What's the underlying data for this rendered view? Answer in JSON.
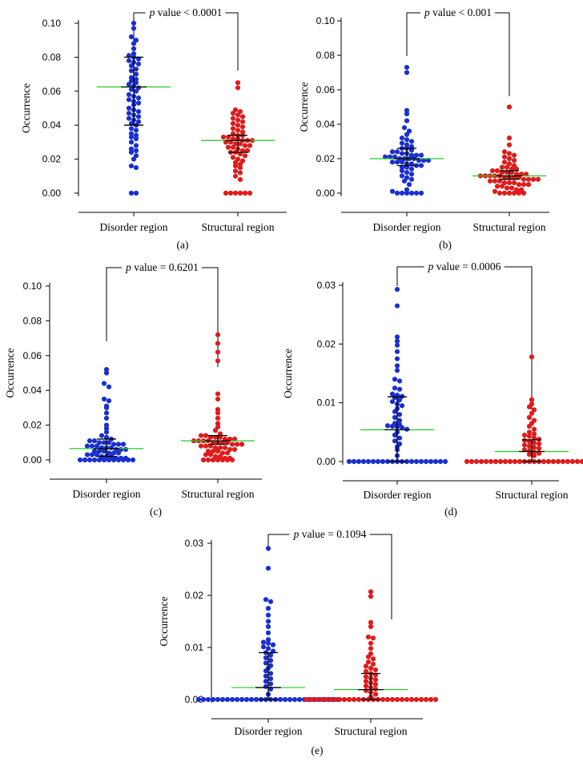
{
  "chart_data": [
    {
      "type": "scatter",
      "panel_label": "(a)",
      "ylabel": "Occurrence",
      "categories": [
        "Disorder region",
        "Structural region"
      ],
      "ylim": [
        0,
        0.1
      ],
      "yticks": [
        "0.00",
        "0.02",
        "0.04",
        "0.06",
        "0.08",
        "0.10"
      ],
      "p_label": "p",
      "p_text": " value < 0.0001",
      "series": [
        {
          "name": "Disorder region",
          "color": "#1a2fd0",
          "median": 0.0625,
          "q1": 0.04,
          "q3": 0.08,
          "values": [
            0.1,
            0.097,
            0.092,
            0.09,
            0.088,
            0.085,
            0.082,
            0.081,
            0.08,
            0.079,
            0.078,
            0.077,
            0.076,
            0.075,
            0.073,
            0.072,
            0.07,
            0.068,
            0.067,
            0.066,
            0.065,
            0.064,
            0.063,
            0.062,
            0.061,
            0.06,
            0.058,
            0.057,
            0.056,
            0.055,
            0.054,
            0.053,
            0.052,
            0.05,
            0.049,
            0.048,
            0.047,
            0.046,
            0.045,
            0.044,
            0.043,
            0.042,
            0.041,
            0.04,
            0.038,
            0.037,
            0.035,
            0.034,
            0.033,
            0.032,
            0.03,
            0.028,
            0.026,
            0.025,
            0.024,
            0.022,
            0.02,
            0.016,
            0.015,
            0.0,
            0.0
          ]
        },
        {
          "name": "Structural region",
          "color": "#e01b1b",
          "median": 0.031,
          "q1": 0.024,
          "q3": 0.034,
          "values": [
            0.065,
            0.062,
            0.049,
            0.048,
            0.047,
            0.046,
            0.045,
            0.044,
            0.043,
            0.042,
            0.041,
            0.04,
            0.039,
            0.038,
            0.037,
            0.036,
            0.035,
            0.034,
            0.034,
            0.033,
            0.033,
            0.032,
            0.032,
            0.031,
            0.031,
            0.031,
            0.03,
            0.03,
            0.029,
            0.029,
            0.028,
            0.028,
            0.027,
            0.027,
            0.026,
            0.025,
            0.025,
            0.024,
            0.024,
            0.023,
            0.022,
            0.021,
            0.02,
            0.019,
            0.018,
            0.017,
            0.016,
            0.015,
            0.013,
            0.012,
            0.01,
            0.008,
            0.0,
            0.0,
            0.0,
            0.0,
            0.0,
            0.0
          ]
        }
      ]
    },
    {
      "type": "scatter",
      "panel_label": "(b)",
      "ylabel": "Occurrence",
      "categories": [
        "Disorder region",
        "Structural region"
      ],
      "ylim": [
        0,
        0.1
      ],
      "yticks": [
        "0.00",
        "0.02",
        "0.04",
        "0.06",
        "0.08",
        "0.10"
      ],
      "p_label": "p",
      "p_text": " value < 0.001",
      "series": [
        {
          "name": "Disorder region",
          "color": "#1a2fd0",
          "median": 0.02,
          "q1": 0.016,
          "q3": 0.026,
          "values": [
            0.073,
            0.07,
            0.048,
            0.046,
            0.042,
            0.038,
            0.036,
            0.034,
            0.032,
            0.031,
            0.03,
            0.029,
            0.028,
            0.027,
            0.026,
            0.026,
            0.025,
            0.024,
            0.024,
            0.023,
            0.023,
            0.022,
            0.022,
            0.022,
            0.021,
            0.021,
            0.021,
            0.02,
            0.02,
            0.02,
            0.02,
            0.019,
            0.019,
            0.019,
            0.018,
            0.018,
            0.018,
            0.017,
            0.017,
            0.016,
            0.016,
            0.015,
            0.015,
            0.014,
            0.013,
            0.012,
            0.011,
            0.01,
            0.009,
            0.008,
            0.007,
            0.005,
            0.002,
            0.001,
            0.0,
            0.0,
            0.0,
            0.0,
            0.0,
            0.0
          ]
        },
        {
          "name": "Structural region",
          "color": "#e01b1b",
          "median": 0.01,
          "q1": 0.008,
          "q3": 0.013,
          "values": [
            0.05,
            0.032,
            0.028,
            0.024,
            0.023,
            0.022,
            0.021,
            0.02,
            0.019,
            0.018,
            0.017,
            0.016,
            0.015,
            0.015,
            0.014,
            0.014,
            0.013,
            0.013,
            0.012,
            0.012,
            0.012,
            0.011,
            0.011,
            0.011,
            0.01,
            0.01,
            0.01,
            0.01,
            0.01,
            0.009,
            0.009,
            0.009,
            0.009,
            0.008,
            0.008,
            0.008,
            0.008,
            0.007,
            0.007,
            0.007,
            0.006,
            0.006,
            0.006,
            0.005,
            0.005,
            0.005,
            0.004,
            0.004,
            0.003,
            0.003,
            0.002,
            0.002,
            0.001,
            0.0,
            0.0,
            0.0,
            0.0,
            0.0,
            0.0
          ]
        }
      ]
    },
    {
      "type": "scatter",
      "panel_label": "(c)",
      "ylabel": "Occurrence",
      "categories": [
        "Disorder region",
        "Structural region"
      ],
      "ylim": [
        0,
        0.1
      ],
      "yticks": [
        "0.00",
        "0.02",
        "0.04",
        "0.06",
        "0.08",
        "0.10"
      ],
      "p_label": "p",
      "p_text": " value = 0.6201",
      "series": [
        {
          "name": "Disorder region",
          "color": "#1a2fd0",
          "median": 0.0065,
          "q1": 0.002,
          "q3": 0.012,
          "values": [
            0.052,
            0.05,
            0.044,
            0.042,
            0.035,
            0.034,
            0.031,
            0.03,
            0.027,
            0.024,
            0.02,
            0.018,
            0.016,
            0.014,
            0.013,
            0.012,
            0.011,
            0.011,
            0.01,
            0.01,
            0.01,
            0.009,
            0.009,
            0.009,
            0.008,
            0.008,
            0.008,
            0.007,
            0.007,
            0.007,
            0.006,
            0.006,
            0.006,
            0.005,
            0.005,
            0.005,
            0.004,
            0.004,
            0.004,
            0.003,
            0.003,
            0.003,
            0.002,
            0.002,
            0.002,
            0.001,
            0.001,
            0.001,
            0.0,
            0.0,
            0.0,
            0.0,
            0.0,
            0.0,
            0.0,
            0.0,
            0.0,
            0.0,
            0.0,
            0.0
          ]
        },
        {
          "name": "Structural region",
          "color": "#e01b1b",
          "median": 0.011,
          "q1": 0.009,
          "q3": 0.014,
          "values": [
            0.072,
            0.067,
            0.062,
            0.057,
            0.038,
            0.035,
            0.029,
            0.027,
            0.024,
            0.021,
            0.019,
            0.017,
            0.015,
            0.014,
            0.014,
            0.013,
            0.013,
            0.013,
            0.012,
            0.012,
            0.012,
            0.011,
            0.011,
            0.011,
            0.011,
            0.01,
            0.01,
            0.01,
            0.01,
            0.009,
            0.009,
            0.009,
            0.008,
            0.008,
            0.008,
            0.007,
            0.007,
            0.007,
            0.006,
            0.006,
            0.005,
            0.005,
            0.005,
            0.004,
            0.004,
            0.003,
            0.003,
            0.002,
            0.002,
            0.001,
            0.001,
            0.0,
            0.0,
            0.0,
            0.0,
            0.0,
            0.0,
            0.0
          ]
        }
      ]
    },
    {
      "type": "scatter",
      "panel_label": "(d)",
      "ylabel": "Occurrence",
      "categories": [
        "Disorder region",
        "Structural region"
      ],
      "ylim": [
        0,
        0.03
      ],
      "yticks": [
        "0.00",
        "0.01",
        "0.02",
        "0.03"
      ],
      "p_label": "p",
      "p_text": " value = 0.0006",
      "series": [
        {
          "name": "Disorder region",
          "color": "#1a2fd0",
          "median": 0.0054,
          "q1": 0.0,
          "q3": 0.011,
          "values": [
            0.0293,
            0.0265,
            0.0212,
            0.0205,
            0.0198,
            0.0187,
            0.0175,
            0.0163,
            0.0155,
            0.014,
            0.0137,
            0.0125,
            0.0123,
            0.0115,
            0.0113,
            0.0111,
            0.0109,
            0.0105,
            0.0102,
            0.0098,
            0.0095,
            0.009,
            0.0085,
            0.008,
            0.0075,
            0.007,
            0.0065,
            0.0063,
            0.0061,
            0.006,
            0.0059,
            0.0058,
            0.0055,
            0.005,
            0.0045,
            0.004,
            0.0035,
            0.003,
            0.0025,
            0.002,
            0.001,
            0.0,
            0.0,
            0.0,
            0.0,
            0.0,
            0.0,
            0.0,
            0.0,
            0.0,
            0.0,
            0.0,
            0.0,
            0.0,
            0.0,
            0.0,
            0.0,
            0.0,
            0.0,
            0.0,
            0.0,
            0.0
          ]
        },
        {
          "name": "Structural region",
          "color": "#e01b1b",
          "median": 0.0017,
          "q1": 0.0,
          "q3": 0.0037,
          "values": [
            0.0178,
            0.0105,
            0.0098,
            0.0093,
            0.0088,
            0.0082,
            0.0075,
            0.007,
            0.0065,
            0.006,
            0.0055,
            0.005,
            0.0047,
            0.0045,
            0.0043,
            0.004,
            0.0038,
            0.0036,
            0.0034,
            0.0032,
            0.003,
            0.0028,
            0.0026,
            0.0024,
            0.0022,
            0.002,
            0.0018,
            0.0016,
            0.0014,
            0.0012,
            0.001,
            0.0,
            0.0,
            0.0,
            0.0,
            0.0,
            0.0,
            0.0,
            0.0,
            0.0,
            0.0,
            0.0,
            0.0,
            0.0,
            0.0,
            0.0,
            0.0,
            0.0,
            0.0,
            0.0,
            0.0,
            0.0,
            0.0,
            0.0,
            0.0,
            0.0,
            0.0,
            0.0,
            0.0
          ]
        }
      ]
    },
    {
      "type": "scatter",
      "panel_label": "(e)",
      "ylabel": "Occurrence",
      "categories": [
        "Disorder region",
        "Structural region"
      ],
      "ylim": [
        0,
        0.03
      ],
      "yticks": [
        "0.00",
        "0.01",
        "0.02",
        "0.03"
      ],
      "p_label": "p",
      "p_text": " value = 0.1094",
      "series": [
        {
          "name": "Disorder region",
          "color": "#1a2fd0",
          "median": 0.0023,
          "q1": 0.0,
          "q3": 0.009,
          "values": [
            0.029,
            0.0252,
            0.0192,
            0.0188,
            0.0175,
            0.0162,
            0.015,
            0.014,
            0.0128,
            0.0115,
            0.011,
            0.0108,
            0.0105,
            0.0101,
            0.0098,
            0.0093,
            0.009,
            0.0085,
            0.008,
            0.0075,
            0.007,
            0.0065,
            0.006,
            0.0055,
            0.005,
            0.0045,
            0.004,
            0.0035,
            0.003,
            0.0025,
            0.002,
            0.001,
            0.0,
            0.0,
            0.0,
            0.0,
            0.0,
            0.0,
            0.0,
            0.0,
            0.0,
            0.0,
            0.0,
            0.0,
            0.0,
            0.0,
            0.0,
            0.0,
            0.0,
            0.0,
            0.0,
            0.0,
            0.0,
            0.0,
            0.0,
            0.0,
            0.0,
            0.0,
            0.0,
            0.0,
            0.0,
            0.0
          ]
        },
        {
          "name": "Structural region",
          "color": "#e01b1b",
          "median": 0.0019,
          "q1": 0.0,
          "q3": 0.005,
          "values": [
            0.0207,
            0.0198,
            0.0148,
            0.014,
            0.012,
            0.0118,
            0.0108,
            0.0098,
            0.0088,
            0.0082,
            0.0078,
            0.0072,
            0.0068,
            0.0064,
            0.006,
            0.0057,
            0.0054,
            0.005,
            0.0047,
            0.0044,
            0.0041,
            0.0038,
            0.0035,
            0.0032,
            0.0029,
            0.0026,
            0.0023,
            0.002,
            0.0017,
            0.0014,
            0.001,
            0.0005,
            0.0,
            0.0,
            0.0,
            0.0,
            0.0,
            0.0,
            0.0,
            0.0,
            0.0,
            0.0,
            0.0,
            0.0,
            0.0,
            0.0,
            0.0,
            0.0,
            0.0,
            0.0,
            0.0,
            0.0,
            0.0,
            0.0,
            0.0,
            0.0,
            0.0,
            0.0,
            0.0,
            0.0
          ]
        }
      ]
    }
  ]
}
